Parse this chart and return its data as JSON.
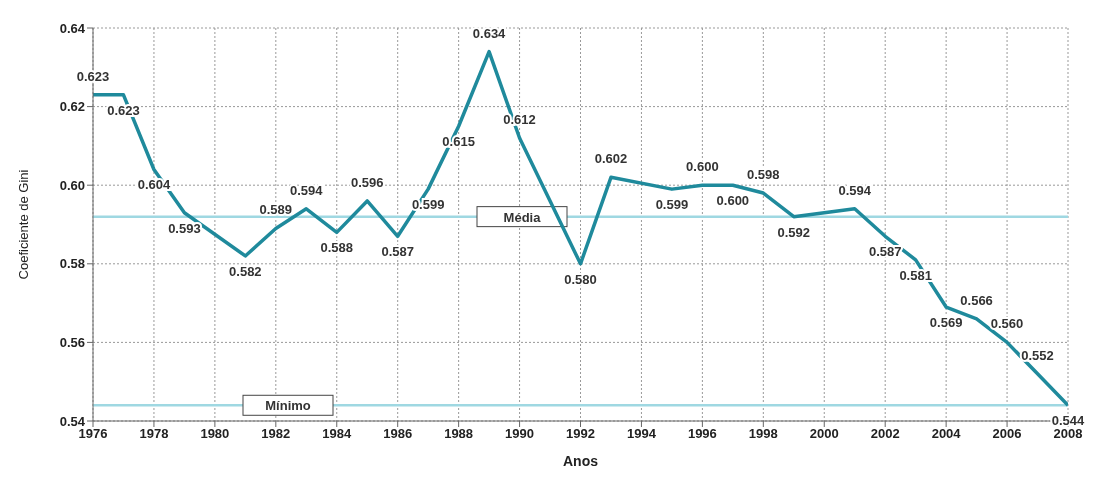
{
  "chart_data": {
    "type": "line",
    "xlabel": "Anos",
    "ylabel": "Coeficiente de Gini",
    "x": [
      1976,
      1977,
      1978,
      1979,
      1981,
      1982,
      1983,
      1984,
      1985,
      1986,
      1987,
      1988,
      1989,
      1990,
      1992,
      1993,
      1995,
      1996,
      1997,
      1998,
      1999,
      2001,
      2002,
      2003,
      2004,
      2005,
      2006,
      2007,
      2008
    ],
    "series": [
      {
        "color": "#1f8a9c",
        "values": [
          0.623,
          0.623,
          0.604,
          0.593,
          0.582,
          0.589,
          0.594,
          0.588,
          0.596,
          0.587,
          0.599,
          0.615,
          0.634,
          0.612,
          0.58,
          0.602,
          0.599,
          0.6,
          0.6,
          0.598,
          0.592,
          0.594,
          0.587,
          0.581,
          0.569,
          0.566,
          0.56,
          0.552,
          0.544
        ],
        "value_labels": [
          "0.623",
          "0.623",
          "0.604",
          "0.593",
          "0.582",
          "0.589",
          "0.594",
          "0.588",
          "0.596",
          "0.587",
          "0.599",
          "0.615",
          "0.634",
          "0.612",
          "0.580",
          "0.602",
          "0.599",
          "0.600",
          "0.600",
          "0.598",
          "0.592",
          "0.594",
          "0.587",
          "0.581",
          "0.569",
          "0.566",
          "0.560",
          "0.552",
          "0.544"
        ]
      }
    ],
    "xlim": [
      1976,
      2008
    ],
    "xticks": [
      1976,
      1978,
      1980,
      1982,
      1984,
      1986,
      1988,
      1990,
      1992,
      1994,
      1996,
      1998,
      2000,
      2002,
      2004,
      2006,
      2008
    ],
    "ylim": [
      0.54,
      0.64
    ],
    "yticks": [
      {
        "value": 0.54,
        "label": "0.54"
      },
      {
        "value": 0.56,
        "label": "0.56"
      },
      {
        "value": 0.58,
        "label": "0.58"
      },
      {
        "value": 0.6,
        "label": "0.60"
      },
      {
        "value": 0.62,
        "label": "0.62"
      },
      {
        "value": 0.64,
        "label": "0.64"
      }
    ],
    "ref_lines": [
      {
        "axis": "y",
        "value": 0.592,
        "label": "Média",
        "color": "#9fd8e2"
      },
      {
        "axis": "y",
        "value": 0.544,
        "label": "Mínimo",
        "color": "#9fd8e2"
      }
    ],
    "grid": true,
    "line_style": "solid",
    "marker": "none"
  }
}
